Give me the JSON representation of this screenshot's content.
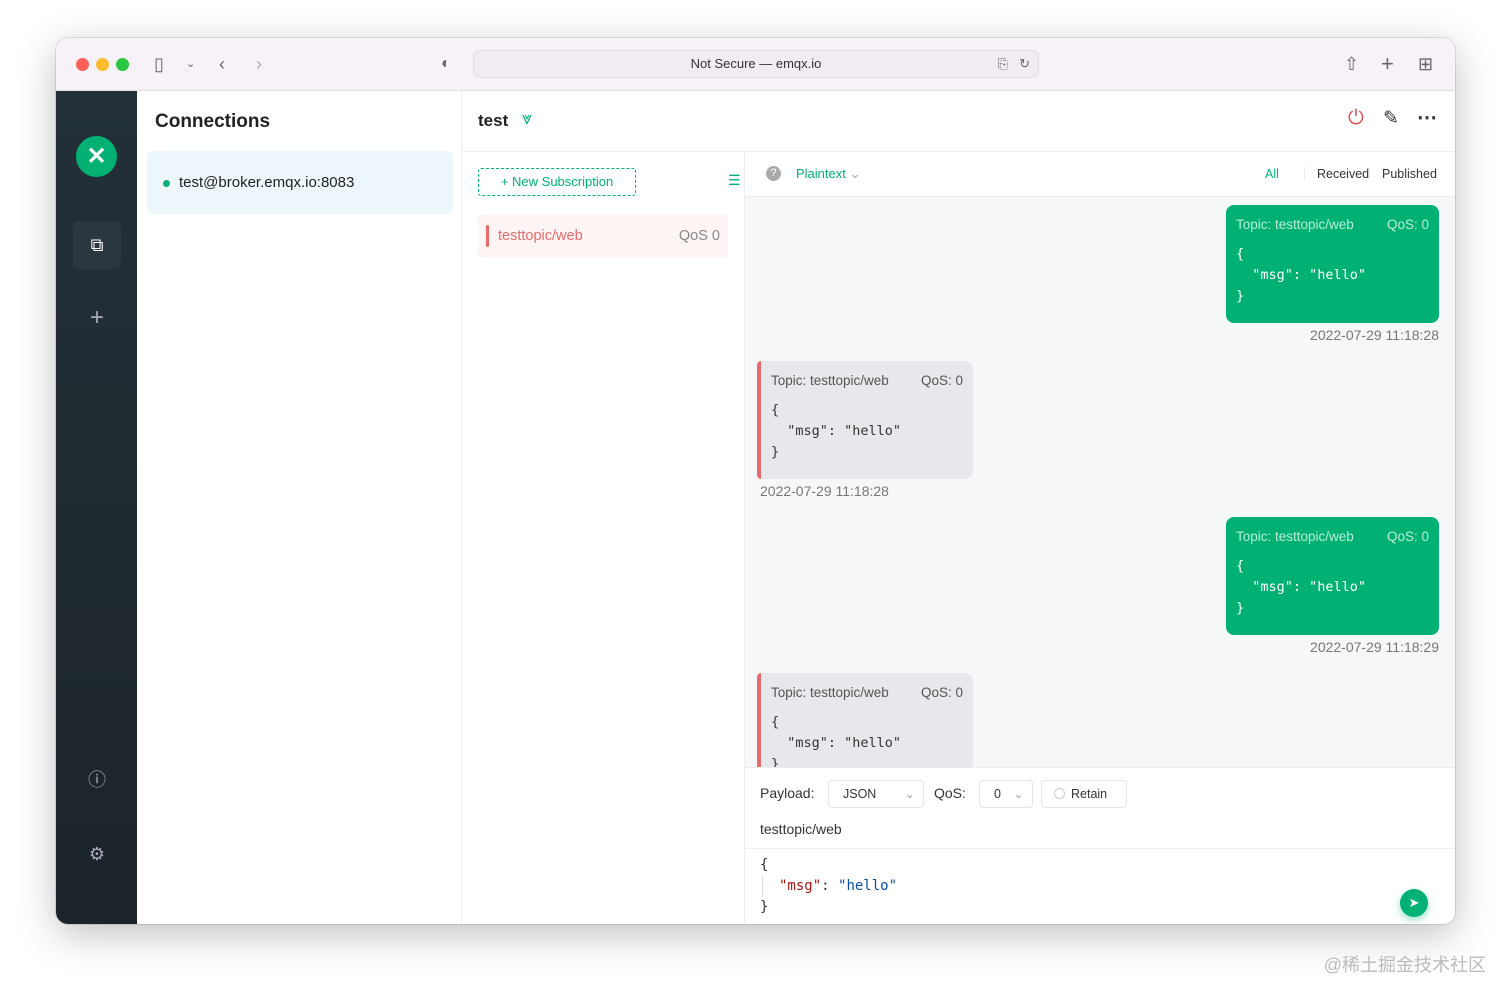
{
  "browser": {
    "url": "Not Secure — emqx.io"
  },
  "connections": {
    "title": "Connections",
    "items": [
      {
        "label": "test@broker.emqx.io:8083",
        "status": "connected"
      }
    ]
  },
  "connection": {
    "name": "test"
  },
  "subscriptions": {
    "new_label": "New Subscription",
    "items": [
      {
        "topic": "testtopic/web",
        "qos": "QoS 0",
        "color": "#e86b6b"
      }
    ]
  },
  "messages": {
    "format": "Plaintext",
    "filters": [
      "All",
      "Received",
      "Published"
    ],
    "active_filter": "All",
    "items": [
      {
        "dir": "out",
        "topic": "Topic: testtopic/web",
        "qos": "QoS: 0",
        "payload": "{\n  \"msg\": \"hello\"\n}",
        "time": "2022-07-29 11:18:28"
      },
      {
        "dir": "in",
        "topic": "Topic: testtopic/web",
        "qos": "QoS: 0",
        "payload": "{\n  \"msg\": \"hello\"\n}",
        "time": "2022-07-29 11:18:28"
      },
      {
        "dir": "out",
        "topic": "Topic: testtopic/web",
        "qos": "QoS: 0",
        "payload": "{\n  \"msg\": \"hello\"\n}",
        "time": "2022-07-29 11:18:29"
      },
      {
        "dir": "in",
        "topic": "Topic: testtopic/web",
        "qos": "QoS: 0",
        "payload": "{\n  \"msg\": \"hello\"\n}",
        "time": ""
      }
    ]
  },
  "publish": {
    "payload_label": "Payload:",
    "payload_type": "JSON",
    "qos_label": "QoS:",
    "qos": "0",
    "retain_label": "Retain",
    "topic": "testtopic/web",
    "key": "\"msg\"",
    "value": "\"hello\""
  },
  "colors": {
    "accent": "#00b173",
    "sidebar": "#1f2a30",
    "received": "#e86b6b"
  },
  "watermark": "@稀土掘金技术社区"
}
